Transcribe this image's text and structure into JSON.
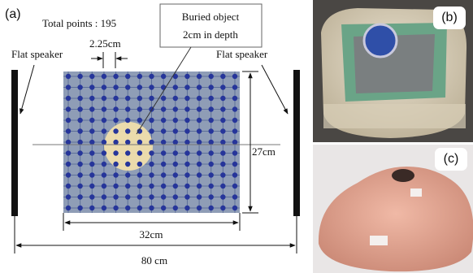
{
  "panel_a": {
    "label": "(a)",
    "total_points": "Total points : 195",
    "callout": [
      "Buried object",
      "2cm in depth"
    ],
    "spacing": "2.25cm",
    "left_speaker": "Flat speaker",
    "right_speaker": "Flat speaker",
    "height": "27cm",
    "width": "32cm",
    "total_width": "80 cm"
  },
  "panel_b": {
    "label": "(b)"
  },
  "panel_c": {
    "label": "(c)"
  }
}
